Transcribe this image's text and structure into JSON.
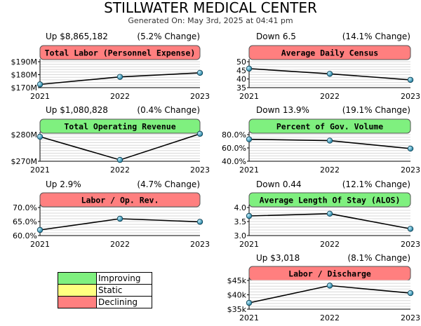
{
  "header": {
    "title": "STILLWATER MEDICAL CENTER",
    "generated": "Generated On: May 3rd, 2025 at 04:41 pm"
  },
  "colors": {
    "improving": "#7ff07f",
    "static": "#ffff80",
    "declining": "#ff7f7f",
    "line": "#000000",
    "marker": "#1f7a9a"
  },
  "legend": [
    {
      "label": "Improving",
      "color": "#7ff07f"
    },
    {
      "label": "Static",
      "color": "#ffff80"
    },
    {
      "label": "Declining",
      "color": "#ff7f7f"
    }
  ],
  "chart_data": [
    {
      "type": "line",
      "title": "Total Labor (Personnel Expense)",
      "status": "declining",
      "summary": "Up $8,865,182",
      "change": "(5.2% Change)",
      "x": [
        "2021",
        "2022",
        "2023"
      ],
      "values": [
        172.5,
        178.3,
        181.4
      ],
      "ylim": [
        170,
        190
      ],
      "yticks": [
        170,
        180,
        190
      ],
      "yticklabels": [
        "$170M",
        "$180M",
        "$190M"
      ]
    },
    {
      "type": "line",
      "title": "Average Daily Census",
      "status": "declining",
      "summary": "Down 6.5",
      "change": "(14.1% Change)",
      "x": [
        "2021",
        "2022",
        "2023"
      ],
      "values": [
        46,
        43,
        39.5
      ],
      "ylim": [
        35,
        50
      ],
      "yticks": [
        35,
        40,
        45,
        50
      ],
      "yticklabels": [
        "35",
        "40",
        "45",
        "50"
      ]
    },
    {
      "type": "line",
      "title": "Total Operating Revenue",
      "status": "improving",
      "summary": "Up $1,080,828",
      "change": "(0.4% Change)",
      "x": [
        "2021",
        "2022",
        "2023"
      ],
      "values": [
        279.2,
        270.5,
        280.3
      ],
      "ylim": [
        270,
        280
      ],
      "yticks": [
        270,
        280
      ],
      "yticklabels": [
        "$270M",
        "$280M"
      ]
    },
    {
      "type": "line",
      "title": "Percent of Gov. Volume",
      "status": "improving",
      "summary": "Down 13.9%",
      "change": "(19.1% Change)",
      "x": [
        "2021",
        "2022",
        "2023"
      ],
      "values": [
        73,
        71,
        59
      ],
      "ylim": [
        40,
        80
      ],
      "yticks": [
        40,
        60,
        80
      ],
      "yticklabels": [
        "40.0%",
        "60.0%",
        "80.0%"
      ]
    },
    {
      "type": "line",
      "title": "Labor / Op. Rev.",
      "status": "declining",
      "summary": "Up 2.9%",
      "change": "(4.7% Change)",
      "x": [
        "2021",
        "2022",
        "2023"
      ],
      "values": [
        62.0,
        66.0,
        64.9
      ],
      "ylim": [
        60,
        70
      ],
      "yticks": [
        60,
        65,
        70
      ],
      "yticklabels": [
        "60.0%",
        "65.0%",
        "70.0%"
      ]
    },
    {
      "type": "line",
      "title": "Average Length Of Stay (ALOS)",
      "status": "improving",
      "summary": "Down 0.44",
      "change": "(12.1% Change)",
      "x": [
        "2021",
        "2022",
        "2023"
      ],
      "values": [
        3.7,
        3.78,
        3.24
      ],
      "ylim": [
        3,
        4
      ],
      "yticks": [
        3,
        3.5,
        4
      ],
      "yticklabels": [
        "3.0",
        "3.5",
        "4.0"
      ]
    },
    {
      "type": "line",
      "title": "Labor / Discharge",
      "status": "declining",
      "summary": "Up $3,018",
      "change": "(8.1% Change)",
      "x": [
        "2021",
        "2022",
        "2023"
      ],
      "values": [
        37.2,
        43.2,
        40.6
      ],
      "ylim": [
        35,
        45
      ],
      "yticks": [
        35,
        40,
        45
      ],
      "yticklabels": [
        "$35k",
        "$40k",
        "$45k"
      ]
    }
  ]
}
